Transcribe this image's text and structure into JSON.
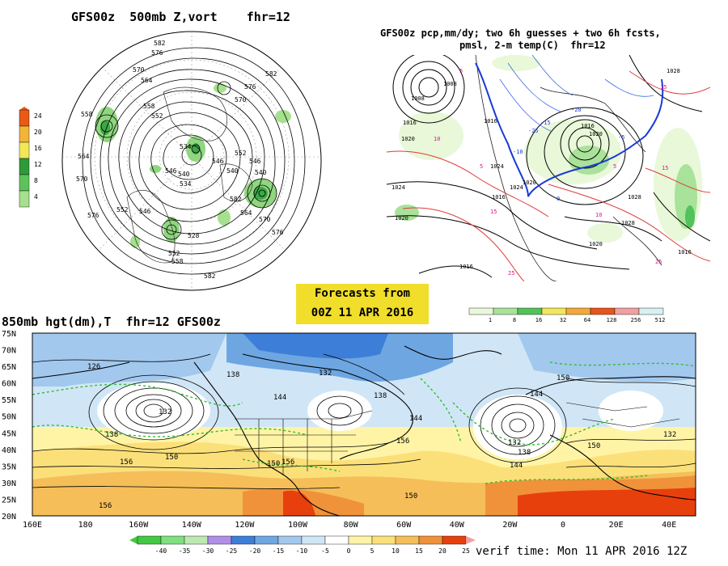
{
  "panel_500mb": {
    "title": "GFS00z  500mb Z,vort    fhr=12",
    "height_labels": [
      "582",
      "576",
      "570",
      "564",
      "558",
      "552",
      "546",
      "540",
      "534",
      "570",
      "576",
      "582",
      "546",
      "552",
      "558",
      "564",
      "570",
      "576",
      "582",
      "540",
      "546",
      "534",
      "528",
      "552",
      "558",
      "564",
      "570",
      "576",
      "582",
      "552",
      "546",
      "540"
    ],
    "vort_scale": [
      "24",
      "20",
      "16",
      "12",
      "8",
      "4"
    ],
    "vort_colors": [
      "#e85a16",
      "#f2b53a",
      "#f2e65a",
      "#2e9a3a",
      "#5cc35a",
      "#a6e08f"
    ]
  },
  "panel_precip": {
    "title_line1": "GFS00z pcp,mm/dy; two 6h guesses + two 6h fcsts,",
    "title_line2": "pmsl, 2-m temp(C)  fhr=12",
    "pressure_labels": [
      "1008",
      "1008",
      "1016",
      "1016",
      "1020",
      "1024",
      "1024",
      "1024",
      "1016",
      "1020",
      "1020",
      "1020",
      "1016",
      "1028",
      "1028",
      "1028",
      "1020",
      "1016",
      "1016"
    ],
    "temp_labels": [
      "-15",
      "-20",
      "-25",
      "-10",
      "-5",
      "5",
      "10",
      "15",
      "15",
      "10",
      "5",
      "15",
      "25",
      "25",
      "5",
      "0"
    ],
    "precip_scale": [
      "1",
      "8",
      "16",
      "32",
      "64",
      "128",
      "256",
      "512"
    ],
    "precip_colors": [
      "#e8f8d8",
      "#a9e29a",
      "#52c25a",
      "#f2e65a",
      "#f2a93a",
      "#e8541c",
      "#f0a0a0",
      "#d8f0f0"
    ]
  },
  "forecast_box": {
    "line1": "Forecasts from",
    "line2": "00Z 11 APR 2016"
  },
  "panel_850": {
    "title": "850mb hgt(dm),T  fhr=12 GFS00z",
    "lat_labels": [
      "75N",
      "70N",
      "65N",
      "60N",
      "55N",
      "50N",
      "45N",
      "40N",
      "35N",
      "30N",
      "25N",
      "20N"
    ],
    "lon_labels": [
      "160E",
      "180",
      "160W",
      "140W",
      "120W",
      "100W",
      "80W",
      "60W",
      "40W",
      "20W",
      "0",
      "20E",
      "40E"
    ],
    "height_labels": [
      "126",
      "132",
      "138",
      "144",
      "132",
      "138",
      "144",
      "150",
      "156",
      "150",
      "156",
      "132",
      "138",
      "144",
      "150",
      "144",
      "150",
      "156",
      "150",
      "156",
      "138",
      "132"
    ],
    "temp_scale": [
      "-40",
      "-35",
      "-30",
      "-25",
      "-20",
      "-15",
      "-10",
      "-5",
      "0",
      "5",
      "10",
      "15",
      "20",
      "25"
    ],
    "temp_colors": [
      "#44c844",
      "#7ee07e",
      "#bde8b2",
      "#b08ee8",
      "#3d7ed8",
      "#6ea6e2",
      "#a2c8ee",
      "#d0e6f6",
      "#ffffff",
      "#fff4a6",
      "#fbe07a",
      "#f5be58",
      "#f0923a",
      "#e8400c"
    ]
  },
  "verif_time": "verif time: Mon 11 APR 2016 12Z"
}
